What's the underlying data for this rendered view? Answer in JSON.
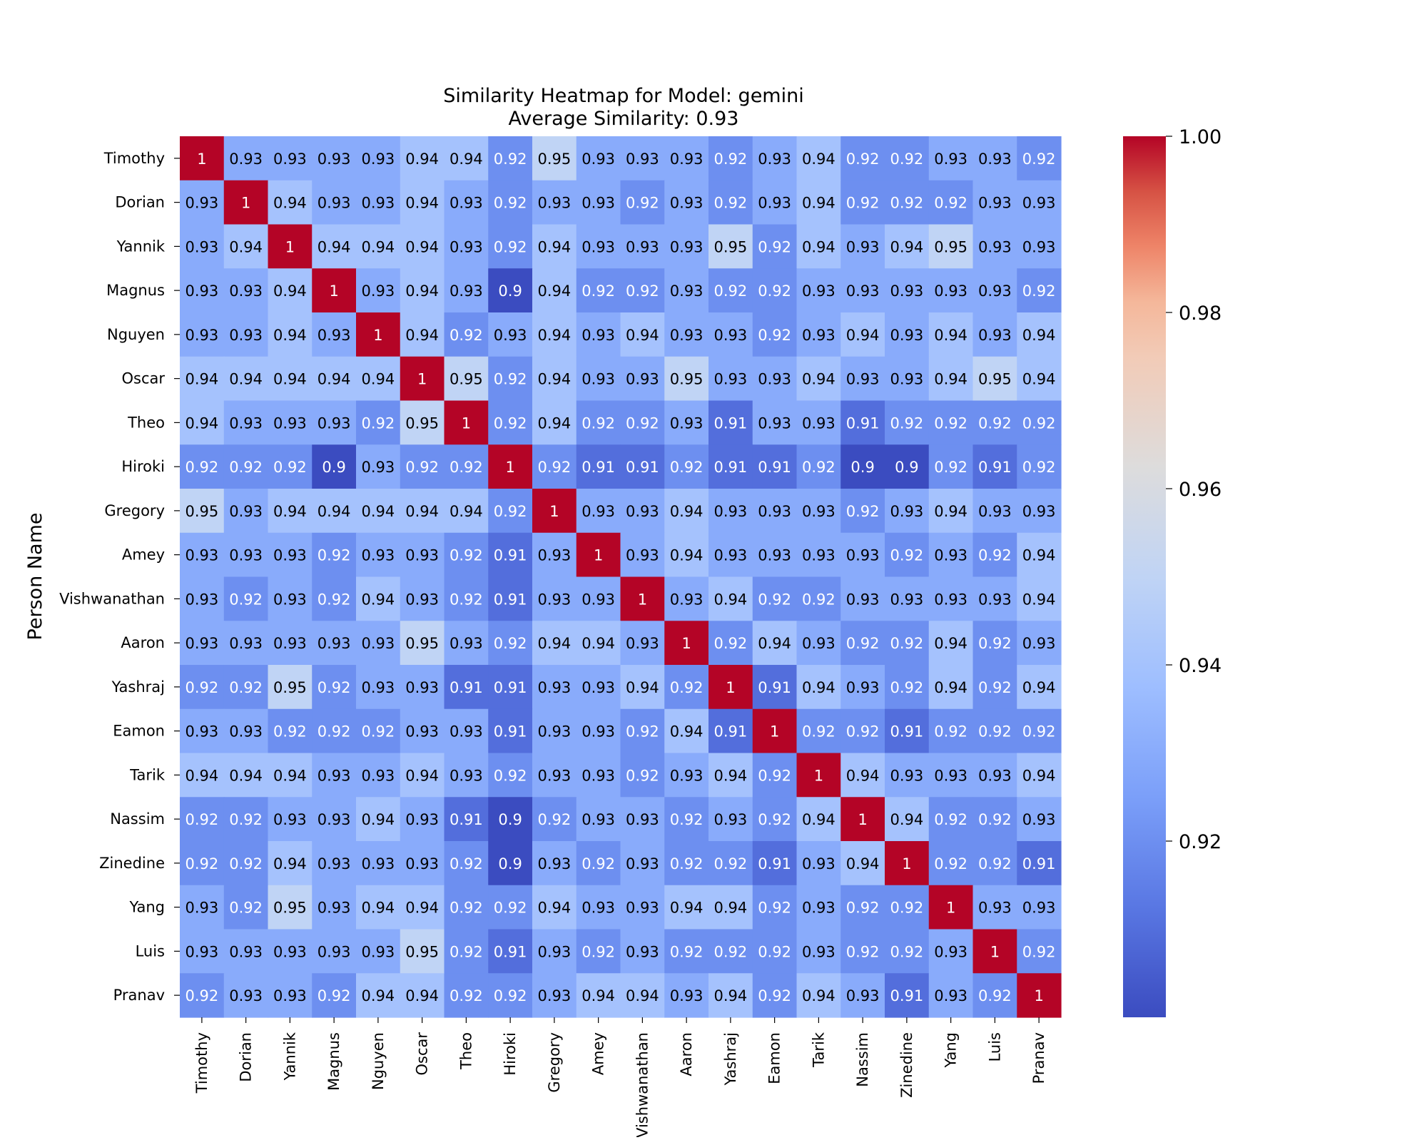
{
  "chart_data": {
    "type": "heatmap",
    "title": "Similarity Heatmap for Model: gemini",
    "subtitle": "Average Similarity: 0.93",
    "ylabel": "Person Name",
    "xlabel": "",
    "colormap": "coolwarm",
    "colorbar": {
      "min": 0.9,
      "max": 1.0,
      "ticks": [
        0.92,
        0.94,
        0.96,
        0.98,
        1.0
      ],
      "tick_labels": [
        "0.92",
        "0.94",
        "0.96",
        "0.98",
        "1.00"
      ]
    },
    "row_labels": [
      "Timothy",
      "Dorian",
      "Yannik",
      "Magnus",
      "Nguyen",
      "Oscar",
      "Theo",
      "Hiroki",
      "Gregory",
      "Amey",
      "Vishwanathan",
      "Aaron",
      "Yashraj",
      "Eamon",
      "Tarik",
      "Nassim",
      "Zinedine",
      "Yang",
      "Luis",
      "Pranav"
    ],
    "col_labels": [
      "Timothy",
      "Dorian",
      "Yannik",
      "Magnus",
      "Nguyen",
      "Oscar",
      "Theo",
      "Hiroki",
      "Gregory",
      "Amey",
      "Vishwanathan",
      "Aaron",
      "Yashraj",
      "Eamon",
      "Tarik",
      "Nassim",
      "Zinedine",
      "Yang",
      "Luis",
      "Pranav"
    ],
    "values": [
      [
        1,
        0.93,
        0.93,
        0.93,
        0.93,
        0.94,
        0.94,
        0.92,
        0.95,
        0.93,
        0.93,
        0.93,
        0.92,
        0.93,
        0.94,
        0.92,
        0.92,
        0.93,
        0.93,
        0.92
      ],
      [
        0.93,
        1,
        0.94,
        0.93,
        0.93,
        0.94,
        0.93,
        0.92,
        0.93,
        0.93,
        0.92,
        0.93,
        0.92,
        0.93,
        0.94,
        0.92,
        0.92,
        0.92,
        0.93,
        0.93
      ],
      [
        0.93,
        0.94,
        1,
        0.94,
        0.94,
        0.94,
        0.93,
        0.92,
        0.94,
        0.93,
        0.93,
        0.93,
        0.95,
        0.92,
        0.94,
        0.93,
        0.94,
        0.95,
        0.93,
        0.93
      ],
      [
        0.93,
        0.93,
        0.94,
        1,
        0.93,
        0.94,
        0.93,
        0.9,
        0.94,
        0.92,
        0.92,
        0.93,
        0.92,
        0.92,
        0.93,
        0.93,
        0.93,
        0.93,
        0.93,
        0.92
      ],
      [
        0.93,
        0.93,
        0.94,
        0.93,
        1,
        0.94,
        0.92,
        0.93,
        0.94,
        0.93,
        0.94,
        0.93,
        0.93,
        0.92,
        0.93,
        0.94,
        0.93,
        0.94,
        0.93,
        0.94
      ],
      [
        0.94,
        0.94,
        0.94,
        0.94,
        0.94,
        1,
        0.95,
        0.92,
        0.94,
        0.93,
        0.93,
        0.95,
        0.93,
        0.93,
        0.94,
        0.93,
        0.93,
        0.94,
        0.95,
        0.94
      ],
      [
        0.94,
        0.93,
        0.93,
        0.93,
        0.92,
        0.95,
        1,
        0.92,
        0.94,
        0.92,
        0.92,
        0.93,
        0.91,
        0.93,
        0.93,
        0.91,
        0.92,
        0.92,
        0.92,
        0.92
      ],
      [
        0.92,
        0.92,
        0.92,
        0.9,
        0.93,
        0.92,
        0.92,
        1,
        0.92,
        0.91,
        0.91,
        0.92,
        0.91,
        0.91,
        0.92,
        0.9,
        0.9,
        0.92,
        0.91,
        0.92
      ],
      [
        0.95,
        0.93,
        0.94,
        0.94,
        0.94,
        0.94,
        0.94,
        0.92,
        1,
        0.93,
        0.93,
        0.94,
        0.93,
        0.93,
        0.93,
        0.92,
        0.93,
        0.94,
        0.93,
        0.93
      ],
      [
        0.93,
        0.93,
        0.93,
        0.92,
        0.93,
        0.93,
        0.92,
        0.91,
        0.93,
        1,
        0.93,
        0.94,
        0.93,
        0.93,
        0.93,
        0.93,
        0.92,
        0.93,
        0.92,
        0.94
      ],
      [
        0.93,
        0.92,
        0.93,
        0.92,
        0.94,
        0.93,
        0.92,
        0.91,
        0.93,
        0.93,
        1,
        0.93,
        0.94,
        0.92,
        0.92,
        0.93,
        0.93,
        0.93,
        0.93,
        0.94
      ],
      [
        0.93,
        0.93,
        0.93,
        0.93,
        0.93,
        0.95,
        0.93,
        0.92,
        0.94,
        0.94,
        0.93,
        1,
        0.92,
        0.94,
        0.93,
        0.92,
        0.92,
        0.94,
        0.92,
        0.93
      ],
      [
        0.92,
        0.92,
        0.95,
        0.92,
        0.93,
        0.93,
        0.91,
        0.91,
        0.93,
        0.93,
        0.94,
        0.92,
        1,
        0.91,
        0.94,
        0.93,
        0.92,
        0.94,
        0.92,
        0.94
      ],
      [
        0.93,
        0.93,
        0.92,
        0.92,
        0.92,
        0.93,
        0.93,
        0.91,
        0.93,
        0.93,
        0.92,
        0.94,
        0.91,
        1,
        0.92,
        0.92,
        0.91,
        0.92,
        0.92,
        0.92
      ],
      [
        0.94,
        0.94,
        0.94,
        0.93,
        0.93,
        0.94,
        0.93,
        0.92,
        0.93,
        0.93,
        0.92,
        0.93,
        0.94,
        0.92,
        1,
        0.94,
        0.93,
        0.93,
        0.93,
        0.94
      ],
      [
        0.92,
        0.92,
        0.93,
        0.93,
        0.94,
        0.93,
        0.91,
        0.9,
        0.92,
        0.93,
        0.93,
        0.92,
        0.93,
        0.92,
        0.94,
        1,
        0.94,
        0.92,
        0.92,
        0.93
      ],
      [
        0.92,
        0.92,
        0.94,
        0.93,
        0.93,
        0.93,
        0.92,
        0.9,
        0.93,
        0.92,
        0.93,
        0.92,
        0.92,
        0.91,
        0.93,
        0.94,
        1,
        0.92,
        0.92,
        0.91
      ],
      [
        0.93,
        0.92,
        0.95,
        0.93,
        0.94,
        0.94,
        0.92,
        0.92,
        0.94,
        0.93,
        0.93,
        0.94,
        0.94,
        0.92,
        0.93,
        0.92,
        0.92,
        1,
        0.93,
        0.93
      ],
      [
        0.93,
        0.93,
        0.93,
        0.93,
        0.93,
        0.95,
        0.92,
        0.91,
        0.93,
        0.92,
        0.93,
        0.92,
        0.92,
        0.92,
        0.93,
        0.92,
        0.92,
        0.93,
        1,
        0.92
      ],
      [
        0.92,
        0.93,
        0.93,
        0.92,
        0.94,
        0.94,
        0.92,
        0.92,
        0.93,
        0.94,
        0.94,
        0.93,
        0.94,
        0.92,
        0.94,
        0.93,
        0.91,
        0.93,
        0.92,
        1
      ]
    ],
    "colors": {
      "low": "#3b4cc0",
      "mid": "#dddddd",
      "high": "#b40426",
      "text_dark": "#000000",
      "text_light": "#ffffff"
    }
  }
}
